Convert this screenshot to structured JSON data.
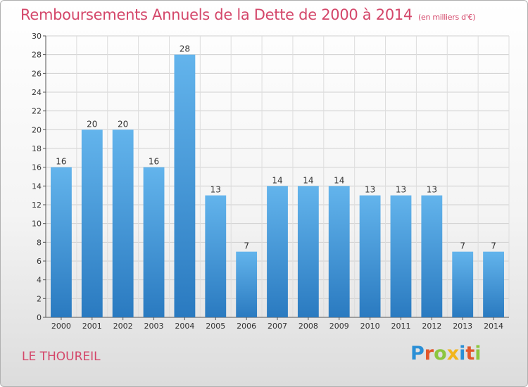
{
  "title": "Remboursements Annuels de la Dette de 2000 à 2014",
  "subtitle": "(en milliers d'€)",
  "commune": "LE THOUREIL",
  "logo": {
    "text": "Proxiti",
    "letters": [
      {
        "ch": "P",
        "color": "#2a8fd6"
      },
      {
        "ch": "r",
        "color": "#e2562a"
      },
      {
        "ch": "o",
        "color": "#8cc63f"
      },
      {
        "ch": "x",
        "color": "#f2b51c"
      },
      {
        "ch": "i",
        "color": "#2a8fd6"
      },
      {
        "ch": "t",
        "color": "#e2562a"
      },
      {
        "ch": "i",
        "color": "#8cc63f"
      }
    ]
  },
  "colors": {
    "bar_light": "#63b4ec",
    "bar_dark": "#2a7ac0",
    "title": "#d4476a"
  },
  "chart_data": {
    "type": "bar",
    "title": "Remboursements Annuels de la Dette de 2000 à 2014",
    "subtitle": "(en milliers d'€)",
    "categories": [
      "2000",
      "2001",
      "2002",
      "2003",
      "2004",
      "2005",
      "2006",
      "2007",
      "2008",
      "2009",
      "2010",
      "2011",
      "2012",
      "2013",
      "2014"
    ],
    "values": [
      16,
      20,
      20,
      16,
      28,
      13,
      7,
      14,
      14,
      14,
      13,
      13,
      13,
      7,
      7
    ],
    "xlabel": "",
    "ylabel": "",
    "ylim": [
      0,
      30
    ],
    "yticks": [
      0,
      2,
      4,
      6,
      8,
      10,
      12,
      14,
      16,
      18,
      20,
      22,
      24,
      26,
      28,
      30
    ],
    "grid": true,
    "legend": "none"
  }
}
